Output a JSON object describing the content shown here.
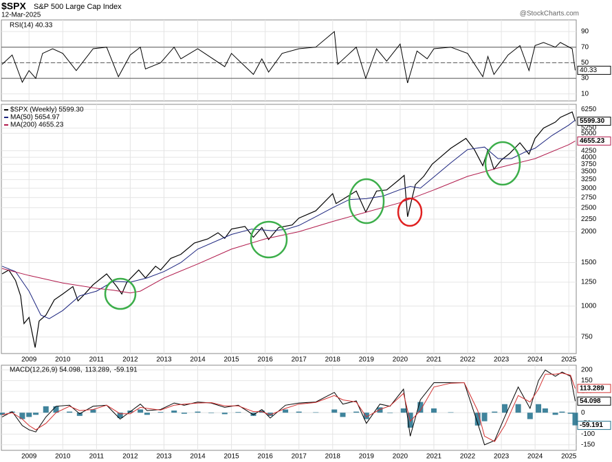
{
  "header": {
    "symbol": "$SPX",
    "name": "S&P 500 Large Cap Index",
    "date": "12-Mar-2025",
    "source": "@StockCharts.com"
  },
  "chart_data": [
    {
      "type": "line",
      "title": "RSI(14) 40.33",
      "last_label": "40.33",
      "x": [
        2008.2,
        2008.5,
        2008.8,
        2009.0,
        2009.2,
        2009.4,
        2009.7,
        2010.0,
        2010.4,
        2010.9,
        2011.3,
        2011.65,
        2012.0,
        2012.3,
        2012.45,
        2012.9,
        2013.3,
        2013.5,
        2014.0,
        2014.8,
        2015.0,
        2015.65,
        2015.9,
        2016.1,
        2016.5,
        2017.0,
        2017.5,
        2018.05,
        2018.15,
        2018.7,
        2018.98,
        2019.3,
        2019.6,
        2020.0,
        2020.22,
        2020.5,
        2020.8,
        2021.0,
        2021.5,
        2022.0,
        2022.45,
        2022.6,
        2022.78,
        2023.2,
        2023.55,
        2023.82,
        2024.0,
        2024.25,
        2024.6,
        2024.75,
        2025.1,
        2025.19
      ],
      "series": [
        {
          "color": "#000000",
          "values": [
            48,
            60,
            25,
            40,
            30,
            62,
            68,
            62,
            40,
            68,
            70,
            32,
            60,
            70,
            42,
            50,
            70,
            55,
            68,
            45,
            62,
            35,
            55,
            38,
            62,
            68,
            70,
            90,
            48,
            70,
            30,
            68,
            52,
            74,
            24,
            65,
            55,
            68,
            70,
            62,
            32,
            58,
            35,
            60,
            72,
            40,
            72,
            76,
            70,
            76,
            68,
            40.33
          ]
        }
      ],
      "xlim": [
        2008.18,
        2025.22
      ],
      "xticks": [
        2009,
        2010,
        2011,
        2012,
        2013,
        2014,
        2015,
        2016,
        2017,
        2018,
        2019,
        2020,
        2021,
        2022,
        2023,
        2024,
        2025
      ],
      "xtick_labels": false,
      "ylim": [
        1,
        105
      ],
      "yticks": [
        10,
        30,
        50,
        70,
        90
      ],
      "reference_lines": [
        30,
        50,
        70
      ],
      "grid": true
    },
    {
      "type": "line",
      "log_scale": true,
      "series": [
        {
          "name": "$SPX (Weekly) 5599.30",
          "last_label": "5599.30",
          "color": "#000000",
          "x": [
            2008.2,
            2008.4,
            2008.6,
            2008.75,
            2008.85,
            2009.0,
            2009.18,
            2009.3,
            2009.5,
            2009.75,
            2010.0,
            2010.3,
            2010.45,
            2010.6,
            2010.9,
            2011.3,
            2011.6,
            2011.75,
            2011.9,
            2012.25,
            2012.45,
            2012.75,
            2012.9,
            2013.2,
            2013.5,
            2013.9,
            2014.3,
            2014.6,
            2014.8,
            2015.0,
            2015.4,
            2015.65,
            2015.9,
            2016.1,
            2016.4,
            2016.8,
            2017.0,
            2017.5,
            2018.0,
            2018.1,
            2018.7,
            2018.98,
            2019.3,
            2019.6,
            2019.95,
            2020.12,
            2020.22,
            2020.45,
            2020.7,
            2020.95,
            2021.5,
            2021.95,
            2022.2,
            2022.45,
            2022.6,
            2022.78,
            2023.0,
            2023.25,
            2023.55,
            2023.82,
            2024.0,
            2024.25,
            2024.6,
            2024.75,
            2025.1,
            2025.19
          ],
          "values": [
            1350,
            1400,
            1270,
            1100,
            850,
            900,
            680,
            870,
            920,
            1060,
            1120,
            1200,
            1050,
            1100,
            1220,
            1350,
            1200,
            1120,
            1250,
            1400,
            1300,
            1450,
            1400,
            1560,
            1620,
            1800,
            1870,
            1980,
            1880,
            2050,
            2100,
            1900,
            2080,
            1860,
            2080,
            2130,
            2270,
            2430,
            2850,
            2600,
            2920,
            2400,
            2920,
            2950,
            3230,
            3380,
            2300,
            3100,
            3350,
            3750,
            4350,
            4770,
            4300,
            3700,
            4280,
            3580,
            3900,
            4150,
            4580,
            4120,
            4770,
            5250,
            5550,
            5800,
            6100,
            5599.3
          ]
        },
        {
          "name": "MA(50) 5654.97",
          "color": "#1a237e",
          "x": [
            2008.2,
            2008.6,
            2009.0,
            2009.35,
            2009.6,
            2010.0,
            2010.5,
            2011.0,
            2011.5,
            2012.0,
            2012.5,
            2013.0,
            2013.5,
            2014.0,
            2015.0,
            2015.6,
            2016.2,
            2016.6,
            2017.0,
            2017.5,
            2018.0,
            2018.5,
            2019.0,
            2019.5,
            2020.0,
            2020.3,
            2020.6,
            2021.0,
            2021.5,
            2022.0,
            2022.5,
            2022.9,
            2023.3,
            2023.7,
            2024.0,
            2024.5,
            2025.0,
            2025.19
          ],
          "values": [
            1450,
            1380,
            1150,
            920,
            890,
            960,
            1100,
            1150,
            1260,
            1250,
            1300,
            1380,
            1500,
            1700,
            1950,
            2050,
            2020,
            2040,
            2120,
            2300,
            2500,
            2700,
            2720,
            2790,
            2960,
            3050,
            3000,
            3330,
            3800,
            4300,
            4400,
            3950,
            3950,
            4200,
            4350,
            4900,
            5400,
            5654.97
          ]
        },
        {
          "name": "MA(200) 4655.23",
          "last_label": "4655.23",
          "color": "#b0184a",
          "x": [
            2008.2,
            2009.0,
            2010.0,
            2011.0,
            2011.5,
            2012.0,
            2012.3,
            2013.0,
            2014.0,
            2015.0,
            2016.0,
            2017.0,
            2018.0,
            2019.0,
            2020.0,
            2021.0,
            2022.0,
            2023.0,
            2024.0,
            2025.0,
            2025.19
          ],
          "values": [
            1420,
            1330,
            1240,
            1180,
            1160,
            1130,
            1150,
            1300,
            1480,
            1700,
            1870,
            2000,
            2200,
            2400,
            2620,
            2950,
            3350,
            3650,
            3950,
            4500,
            4655.23
          ]
        }
      ],
      "xlim": [
        2008.18,
        2025.22
      ],
      "xticks": [
        2009,
        2010,
        2011,
        2012,
        2013,
        2014,
        2015,
        2016,
        2017,
        2018,
        2019,
        2020,
        2021,
        2022,
        2023,
        2024,
        2025
      ],
      "xtick_labels": true,
      "ylim": [
        643,
        6550
      ],
      "yticks": [
        750,
        1000,
        1250,
        1500,
        2000,
        2250,
        2500,
        2750,
        3000,
        3250,
        3500,
        3750,
        4000,
        4250,
        5000,
        5250,
        6250
      ],
      "grid": true
    },
    {
      "type": "line",
      "x": [
        2008.2,
        2008.5,
        2008.8,
        2009.0,
        2009.2,
        2009.5,
        2009.8,
        2010.2,
        2010.5,
        2010.9,
        2011.3,
        2011.7,
        2012.0,
        2012.3,
        2012.5,
        2012.9,
        2013.3,
        2013.6,
        2014.0,
        2014.4,
        2014.8,
        2015.2,
        2015.65,
        2015.9,
        2016.15,
        2016.6,
        2017.0,
        2017.5,
        2018.05,
        2018.3,
        2018.7,
        2019.0,
        2019.4,
        2019.7,
        2020.1,
        2020.3,
        2020.6,
        2021.0,
        2021.5,
        2021.9,
        2022.3,
        2022.5,
        2022.8,
        2023.1,
        2023.5,
        2023.85,
        2024.1,
        2024.3,
        2024.6,
        2024.8,
        2025.05,
        2025.19
      ],
      "series": [
        {
          "name": "-59.191",
          "last_label": "-59.191",
          "type": "bar",
          "color": "#1f6f8b",
          "values": [
            -10,
            5,
            -30,
            -20,
            -10,
            30,
            30,
            5,
            -15,
            15,
            0,
            -25,
            10,
            15,
            -10,
            3,
            10,
            -5,
            5,
            -2,
            -7,
            3,
            -15,
            10,
            -15,
            15,
            5,
            2,
            15,
            -20,
            5,
            -30,
            25,
            -2,
            20,
            -70,
            50,
            20,
            2,
            0,
            -60,
            -40,
            5,
            40,
            40,
            -30,
            40,
            20,
            -10,
            5,
            -5,
            -59.191
          ]
        },
        {
          "name": "MACD(12,26,9) 54.098,",
          "last_label": "54.098",
          "color": "#000000",
          "values": [
            -20,
            5,
            -60,
            -80,
            -90,
            -20,
            30,
            35,
            -5,
            30,
            35,
            -30,
            5,
            40,
            10,
            15,
            45,
            35,
            50,
            45,
            25,
            35,
            -10,
            15,
            -25,
            35,
            45,
            50,
            95,
            40,
            55,
            -50,
            40,
            30,
            110,
            -110,
            60,
            140,
            140,
            140,
            -50,
            -150,
            -130,
            -20,
            120,
            20,
            150,
            200,
            170,
            190,
            170,
            54.098
          ]
        },
        {
          "name": "113.289,",
          "last_label": "113.289",
          "color": "#d32f2f",
          "values": [
            -10,
            0,
            -30,
            -60,
            -80,
            -50,
            0,
            30,
            10,
            15,
            35,
            -5,
            -5,
            25,
            20,
            12,
            35,
            40,
            45,
            47,
            32,
            32,
            5,
            5,
            -10,
            20,
            40,
            48,
            80,
            60,
            50,
            -20,
            15,
            32,
            90,
            -40,
            10,
            120,
            138,
            140,
            10,
            -110,
            -135,
            -60,
            80,
            50,
            110,
            180,
            180,
            185,
            175,
            113.289
          ]
        }
      ],
      "legend_order": [
        1,
        2,
        0
      ],
      "xlim": [
        2008.18,
        2025.22
      ],
      "xticks": [
        2009,
        2010,
        2011,
        2012,
        2013,
        2014,
        2015,
        2016,
        2017,
        2018,
        2019,
        2020,
        2021,
        2022,
        2023,
        2024,
        2025
      ],
      "xtick_labels": true,
      "ylim": [
        -176,
        222
      ],
      "yticks": [
        -150,
        -100,
        -50,
        0,
        50,
        100,
        150,
        200
      ],
      "grid": true
    }
  ]
}
